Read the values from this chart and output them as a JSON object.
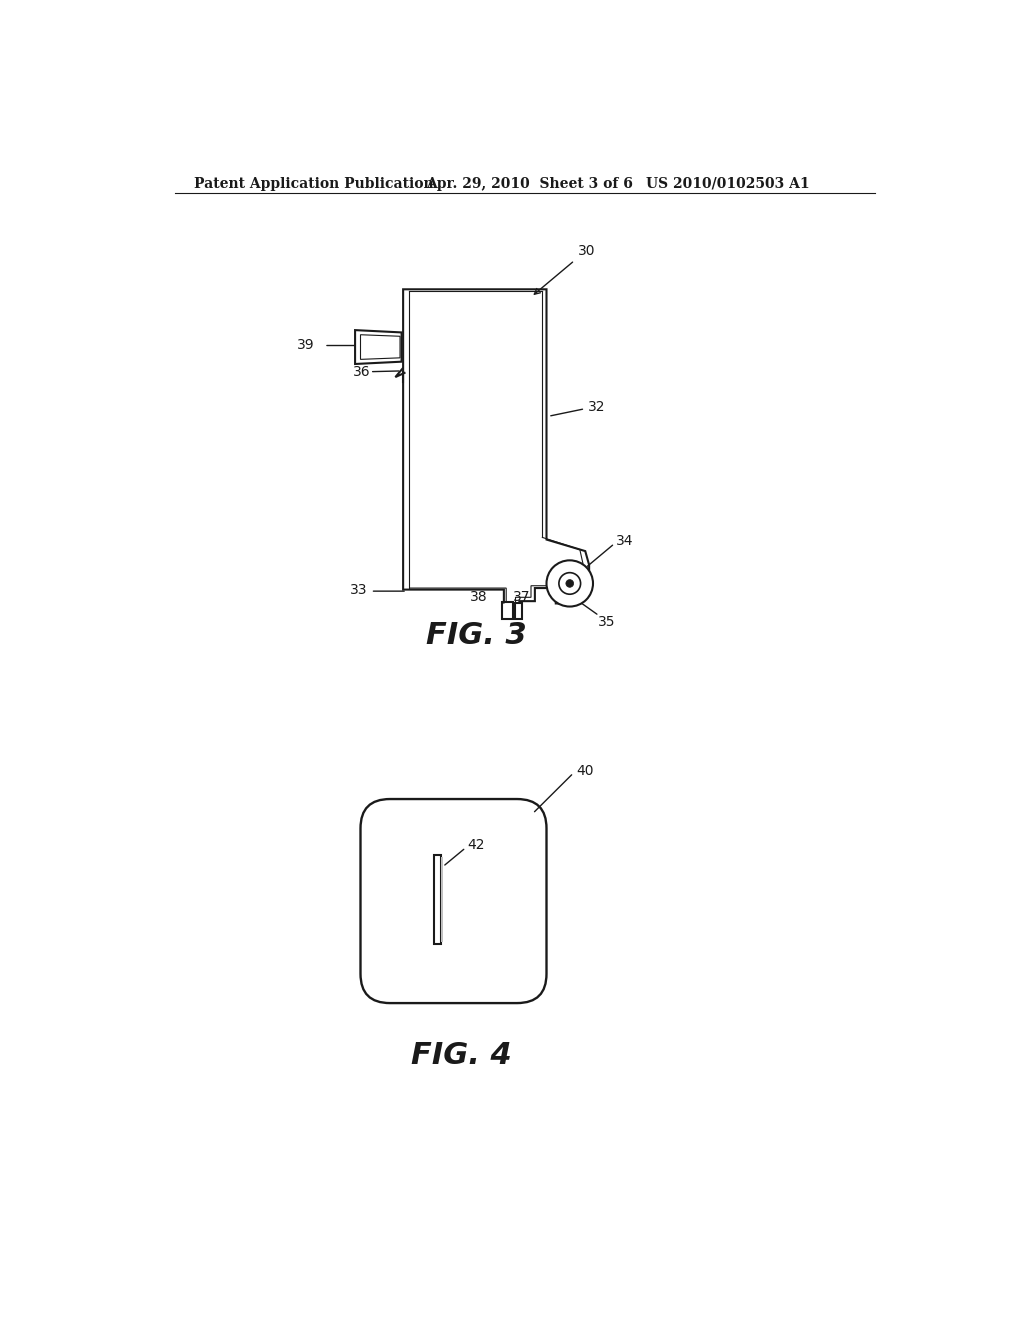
{
  "bg_color": "#ffffff",
  "header_left": "Patent Application Publication",
  "header_center": "Apr. 29, 2010  Sheet 3 of 6",
  "header_right": "US 2010/0102503 A1",
  "fig3_caption": "FIG. 3",
  "fig4_caption": "FIG. 4",
  "line_color": "#1a1a1a",
  "line_width": 1.5,
  "label_fontsize": 10,
  "caption_fontsize": 22,
  "header_fontsize": 10
}
